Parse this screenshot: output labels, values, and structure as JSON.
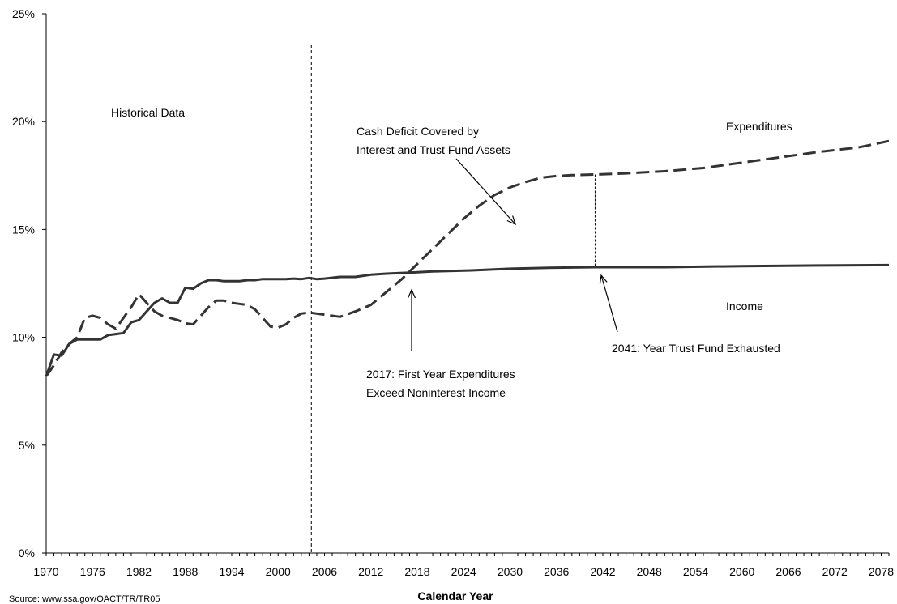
{
  "chart_data": {
    "type": "line",
    "xlabel": "Calendar Year",
    "ylabel": "",
    "xlim": [
      1970,
      2079
    ],
    "ylim": [
      0,
      25
    ],
    "x_ticks": [
      "1970",
      "1976",
      "1982",
      "1988",
      "1994",
      "2000",
      "2006",
      "2012",
      "2018",
      "2024",
      "2030",
      "2036",
      "2042",
      "2048",
      "2054",
      "2060",
      "2066",
      "2072",
      "2078"
    ],
    "y_ticks": [
      "0%",
      "5%",
      "10%",
      "15%",
      "20%",
      "25%"
    ],
    "series": [
      {
        "name": "Income",
        "style": "solid",
        "points": [
          [
            1970,
            8.2
          ],
          [
            1971,
            9.2
          ],
          [
            1972,
            9.15
          ],
          [
            1973,
            9.7
          ],
          [
            1974,
            9.9
          ],
          [
            1975,
            9.9
          ],
          [
            1976,
            9.9
          ],
          [
            1977,
            9.9
          ],
          [
            1978,
            10.1
          ],
          [
            1979,
            10.15
          ],
          [
            1980,
            10.2
          ],
          [
            1981,
            10.7
          ],
          [
            1982,
            10.8
          ],
          [
            1983,
            11.2
          ],
          [
            1984,
            11.6
          ],
          [
            1985,
            11.8
          ],
          [
            1986,
            11.6
          ],
          [
            1987,
            11.6
          ],
          [
            1988,
            12.3
          ],
          [
            1989,
            12.25
          ],
          [
            1990,
            12.5
          ],
          [
            1991,
            12.65
          ],
          [
            1992,
            12.65
          ],
          [
            1993,
            12.6
          ],
          [
            1994,
            12.6
          ],
          [
            1995,
            12.6
          ],
          [
            1996,
            12.65
          ],
          [
            1997,
            12.65
          ],
          [
            1998,
            12.7
          ],
          [
            1999,
            12.7
          ],
          [
            2000,
            12.7
          ],
          [
            2001,
            12.7
          ],
          [
            2002,
            12.72
          ],
          [
            2003,
            12.7
          ],
          [
            2004,
            12.75
          ],
          [
            2005,
            12.7
          ],
          [
            2006,
            12.72
          ],
          [
            2008,
            12.8
          ],
          [
            2010,
            12.8
          ],
          [
            2012,
            12.9
          ],
          [
            2014,
            12.95
          ],
          [
            2017,
            13.0
          ],
          [
            2020,
            13.05
          ],
          [
            2025,
            13.1
          ],
          [
            2030,
            13.18
          ],
          [
            2035,
            13.22
          ],
          [
            2041,
            13.25
          ],
          [
            2050,
            13.25
          ],
          [
            2060,
            13.3
          ],
          [
            2070,
            13.33
          ],
          [
            2079,
            13.35
          ]
        ]
      },
      {
        "name": "Expenditures",
        "style": "dashed",
        "points": [
          [
            1970,
            8.2
          ],
          [
            1971,
            8.7
          ],
          [
            1972,
            9.3
          ],
          [
            1973,
            9.7
          ],
          [
            1974,
            10.0
          ],
          [
            1975,
            10.9
          ],
          [
            1976,
            11.0
          ],
          [
            1977,
            10.9
          ],
          [
            1978,
            10.6
          ],
          [
            1979,
            10.4
          ],
          [
            1980,
            10.9
          ],
          [
            1981,
            11.4
          ],
          [
            1982,
            12.0
          ],
          [
            1983,
            11.6
          ],
          [
            1984,
            11.2
          ],
          [
            1985,
            11.0
          ],
          [
            1986,
            10.9
          ],
          [
            1987,
            10.8
          ],
          [
            1988,
            10.65
          ],
          [
            1989,
            10.6
          ],
          [
            1990,
            11.0
          ],
          [
            1991,
            11.4
          ],
          [
            1992,
            11.7
          ],
          [
            1993,
            11.7
          ],
          [
            1994,
            11.6
          ],
          [
            1995,
            11.55
          ],
          [
            1996,
            11.5
          ],
          [
            1997,
            11.3
          ],
          [
            1998,
            10.9
          ],
          [
            1999,
            10.5
          ],
          [
            2000,
            10.45
          ],
          [
            2001,
            10.6
          ],
          [
            2002,
            10.9
          ],
          [
            2003,
            11.1
          ],
          [
            2004,
            11.15
          ],
          [
            2006,
            11.05
          ],
          [
            2008,
            10.95
          ],
          [
            2010,
            11.2
          ],
          [
            2012,
            11.5
          ],
          [
            2014,
            12.1
          ],
          [
            2016,
            12.7
          ],
          [
            2018,
            13.4
          ],
          [
            2020,
            14.1
          ],
          [
            2022,
            14.8
          ],
          [
            2024,
            15.5
          ],
          [
            2026,
            16.1
          ],
          [
            2028,
            16.6
          ],
          [
            2030,
            16.95
          ],
          [
            2032,
            17.2
          ],
          [
            2034,
            17.4
          ],
          [
            2036,
            17.48
          ],
          [
            2038,
            17.52
          ],
          [
            2041,
            17.55
          ],
          [
            2045,
            17.6
          ],
          [
            2050,
            17.7
          ],
          [
            2055,
            17.85
          ],
          [
            2060,
            18.1
          ],
          [
            2065,
            18.35
          ],
          [
            2070,
            18.6
          ],
          [
            2075,
            18.8
          ],
          [
            2079,
            19.1
          ]
        ]
      }
    ],
    "annotations": {
      "historical": "Historical Data",
      "cash_deficit_line1": "Cash Deficit Covered by",
      "cash_deficit_line2": "Interest and Trust Fund Assets",
      "expenditures_label": "Expenditures",
      "income_label": "Income",
      "first_year_line1": "2017: First Year Expenditures",
      "first_year_line2": "Exceed Noninterest Income",
      "exhausted": "2041: Year Trust Fund Exhausted"
    },
    "vertical_marker_year": 2004.3,
    "gap_marker_year": 2041,
    "source": "Source: www.ssa.gov/OACT/TR/TR05",
    "grid": false,
    "legend": "none"
  }
}
